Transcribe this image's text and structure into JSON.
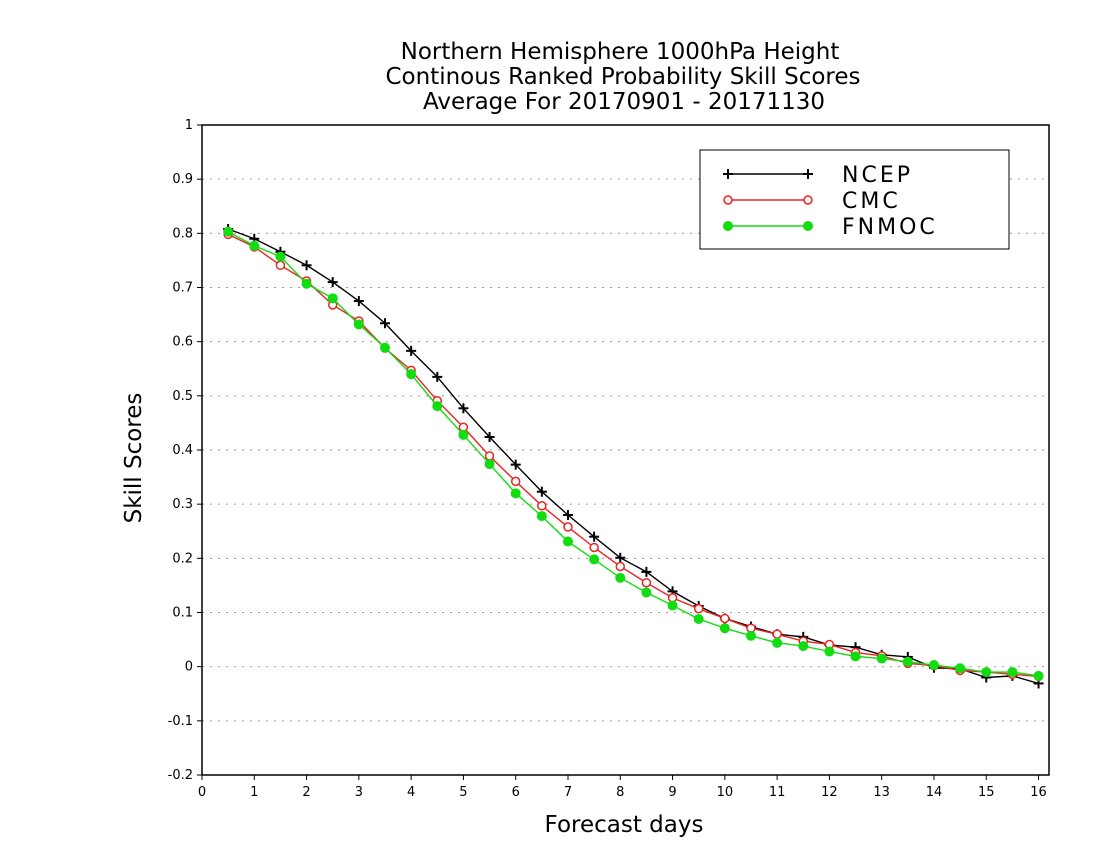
{
  "chart_data": {
    "type": "line",
    "title": [
      "Northern Hemisphere 1000hPa Height",
      "Continous Ranked Probability Skill Scores",
      "Average For 20170901 - 20171130"
    ],
    "xlabel": "Forecast days",
    "ylabel": "Skill Scores",
    "xlim": [
      0,
      16.2
    ],
    "ylim": [
      -0.2,
      1
    ],
    "xticks": [
      0,
      1,
      2,
      3,
      4,
      5,
      6,
      7,
      8,
      9,
      10,
      11,
      12,
      13,
      14,
      15,
      16
    ],
    "yticks": [
      -0.2,
      -0.1,
      0,
      0.1,
      0.2,
      0.3,
      0.4,
      0.5,
      0.6,
      0.7,
      0.8,
      0.9,
      1
    ],
    "ytick_labels": [
      "-0.2",
      "-0.1",
      "0",
      "0.1",
      "0.2",
      "0.3",
      "0.4",
      "0.5",
      "0.6",
      "0.7",
      "0.8",
      "0.9",
      "1"
    ],
    "grid": "horizontal dotted",
    "legend_position": "top-right",
    "x": [
      0.5,
      1,
      1.5,
      2,
      2.5,
      3,
      3.5,
      4,
      4.5,
      5,
      5.5,
      6,
      6.5,
      7,
      7.5,
      8,
      8.5,
      9,
      9.5,
      10,
      10.5,
      11,
      11.5,
      12,
      12.5,
      13,
      13.5,
      14,
      14.5,
      15,
      15.5,
      16
    ],
    "series": [
      {
        "name": "NCEP",
        "color": "#000000",
        "marker": "plus",
        "values": [
          0.808,
          0.79,
          0.766,
          0.741,
          0.71,
          0.675,
          0.634,
          0.583,
          0.535,
          0.477,
          0.424,
          0.373,
          0.323,
          0.28,
          0.24,
          0.201,
          0.175,
          0.139,
          0.112,
          0.089,
          0.074,
          0.06,
          0.055,
          0.04,
          0.036,
          0.022,
          0.018,
          -0.002,
          -0.004,
          -0.02,
          -0.017,
          -0.031
        ]
      },
      {
        "name": "CMC",
        "color": "#ee2222",
        "marker": "open-circle",
        "values": [
          0.798,
          0.775,
          0.741,
          0.712,
          0.668,
          0.638,
          0.588,
          0.547,
          0.491,
          0.442,
          0.389,
          0.342,
          0.297,
          0.258,
          0.22,
          0.185,
          0.155,
          0.127,
          0.107,
          0.089,
          0.071,
          0.06,
          0.047,
          0.041,
          0.026,
          0.02,
          0.006,
          0.002,
          -0.007,
          -0.01,
          -0.014,
          -0.018
        ]
      },
      {
        "name": "FNMOC",
        "color": "#11dd11",
        "marker": "filled-circle",
        "values": [
          0.803,
          0.777,
          0.757,
          0.707,
          0.68,
          0.632,
          0.589,
          0.54,
          0.481,
          0.428,
          0.374,
          0.32,
          0.278,
          0.231,
          0.198,
          0.164,
          0.137,
          0.113,
          0.088,
          0.071,
          0.057,
          0.044,
          0.038,
          0.028,
          0.019,
          0.015,
          0.009,
          0.003,
          -0.003,
          -0.01,
          -0.01,
          -0.017
        ]
      }
    ]
  }
}
